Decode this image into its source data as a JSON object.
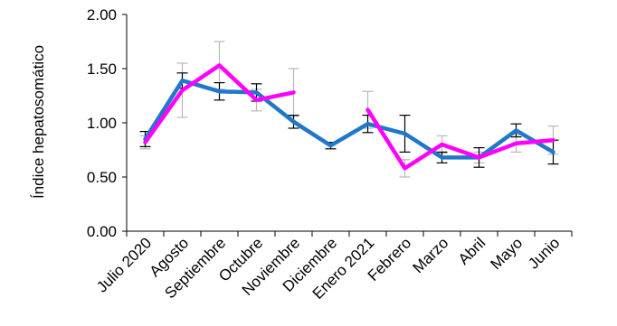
{
  "chart_data": {
    "type": "line",
    "ylabel": "Índice hepatosomático",
    "ylim": [
      0,
      2
    ],
    "yticks": [
      "0.00",
      "0.50",
      "1.00",
      "1.50",
      "2.00"
    ],
    "categories": [
      "Julio 2020",
      "Agosto",
      "Septiembre",
      "Octubre",
      "Noviembre",
      "Diciembre",
      "Enero 2021",
      "Febrero",
      "Marzo",
      "Abril",
      "Mayo",
      "Junio"
    ],
    "grid": false,
    "legend": "none",
    "series": [
      {
        "color": "#1f78c8",
        "errorbar_color": "#000000",
        "values": [
          0.85,
          1.39,
          1.29,
          1.28,
          1.01,
          0.79,
          0.99,
          0.9,
          0.68,
          0.68,
          0.93,
          0.73
        ],
        "errors": [
          0.07,
          0.07,
          0.08,
          0.08,
          0.06,
          0.03,
          0.08,
          0.17,
          0.05,
          0.09,
          0.06,
          0.11
        ]
      },
      {
        "color": "#ff00ff",
        "errorbar_color": "#b8b8b8",
        "segments": [
          {
            "start": 0,
            "values": [
              0.82,
              1.3,
              1.53,
              1.21,
              1.28
            ],
            "errors": [
              0.06,
              0.25,
              0.22,
              0.1,
              0.22
            ]
          },
          {
            "start": 6,
            "values": [
              1.12,
              0.58,
              0.8,
              0.68,
              0.81,
              0.84
            ],
            "errors": [
              0.17,
              0.08,
              0.08,
              0.05,
              0.08,
              0.13
            ]
          }
        ]
      }
    ]
  }
}
